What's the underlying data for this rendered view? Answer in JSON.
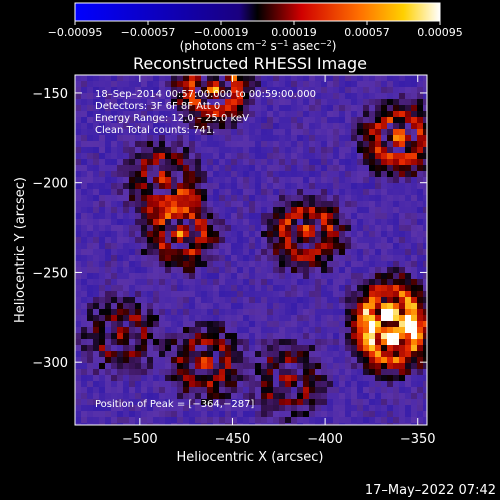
{
  "chart_data": {
    "type": "heatmap",
    "title": "Reconstructed RHESSI Image",
    "xlabel": "Heliocentric X (arcsec)",
    "ylabel": "Heliocentric Y (arcsec)",
    "xlim": [
      -535,
      -345
    ],
    "ylim": [
      -335,
      -140
    ],
    "x_ticks": [
      -500,
      -450,
      -400,
      -350
    ],
    "y_ticks": [
      -150,
      -200,
      -250,
      -300
    ],
    "x_tick_labels": [
      "−500",
      "−450",
      "−400",
      "−350"
    ],
    "y_tick_labels": [
      "−150",
      "−200",
      "−250",
      "−300"
    ],
    "colorbar": {
      "range": [
        -0.00095,
        0.00095
      ],
      "ticks": [
        -0.00095,
        -0.00057,
        -0.00019,
        0.00019,
        0.00057,
        0.00095
      ],
      "tick_labels": [
        "−0.00095",
        "−0.00057",
        "−0.00019",
        "0.00019",
        "0.00057",
        "0.00095"
      ],
      "unit_prefix": "(photons cm",
      "unit_sup1": "−2",
      "unit_mid1": " s",
      "unit_sup2": "−1",
      "unit_mid2": " asec",
      "unit_sup3": "−2",
      "unit_suffix": ")"
    },
    "annotations": {
      "time_range": "18–Sep–2014 00:57:00.000 to 00:59:00.000",
      "detectors": "Detectors: 3F 6F 8F Att 0",
      "energy": "Energy Range: 12.0 – 25.0 keV",
      "clean": "Clean     Total counts: 741.",
      "peak": "Position of Peak = [−364,−287]"
    },
    "peak_position": [
      -364,
      -287
    ],
    "sources": [
      {
        "x": -460,
        "y": -148,
        "strength": 0.95
      },
      {
        "x": -360,
        "y": -175,
        "strength": 0.9
      },
      {
        "x": -487,
        "y": -198,
        "strength": 0.7
      },
      {
        "x": -478,
        "y": -228,
        "strength": 0.8
      },
      {
        "x": -410,
        "y": -228,
        "strength": 0.85
      },
      {
        "x": -365,
        "y": -272,
        "strength": 0.95
      },
      {
        "x": -364,
        "y": -287,
        "strength": 1.0
      },
      {
        "x": -510,
        "y": -285,
        "strength": 0.6
      },
      {
        "x": -465,
        "y": -300,
        "strength": 0.7
      },
      {
        "x": -420,
        "y": -310,
        "strength": 0.6
      }
    ]
  },
  "footer": {
    "timestamp": "17–May–2022 07:42"
  }
}
